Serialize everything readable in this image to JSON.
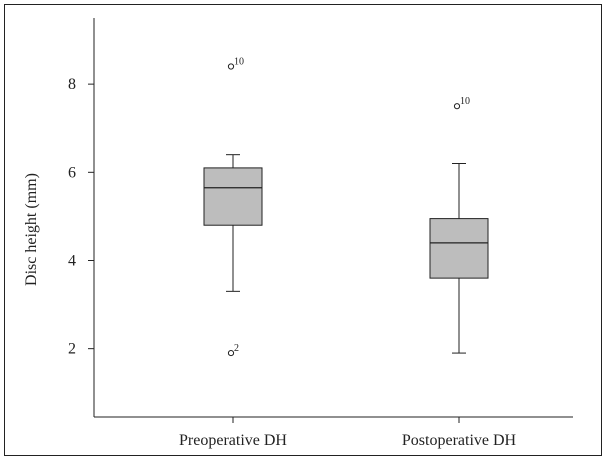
{
  "chart_data": {
    "type": "boxplot",
    "ylabel": "Disc height (mm)",
    "ylim": [
      0.45,
      9.5
    ],
    "yticks": [
      2,
      4,
      6,
      8
    ],
    "categories": [
      "Preoperative DH",
      "Postoperative DH"
    ],
    "boxes": [
      {
        "category": "Preoperative DH",
        "whisker_low": 3.3,
        "q1": 4.8,
        "median": 5.65,
        "q3": 6.1,
        "whisker_high": 6.4,
        "outliers": [
          {
            "value": 8.4,
            "label": "10"
          },
          {
            "value": 1.9,
            "label": "2"
          }
        ]
      },
      {
        "category": "Postoperative DH",
        "whisker_low": 1.9,
        "q1": 3.6,
        "median": 4.4,
        "q3": 4.95,
        "whisker_high": 6.2,
        "outliers": [
          {
            "value": 7.5,
            "label": "10"
          }
        ]
      }
    ],
    "box_color": "#bdbdbd"
  }
}
